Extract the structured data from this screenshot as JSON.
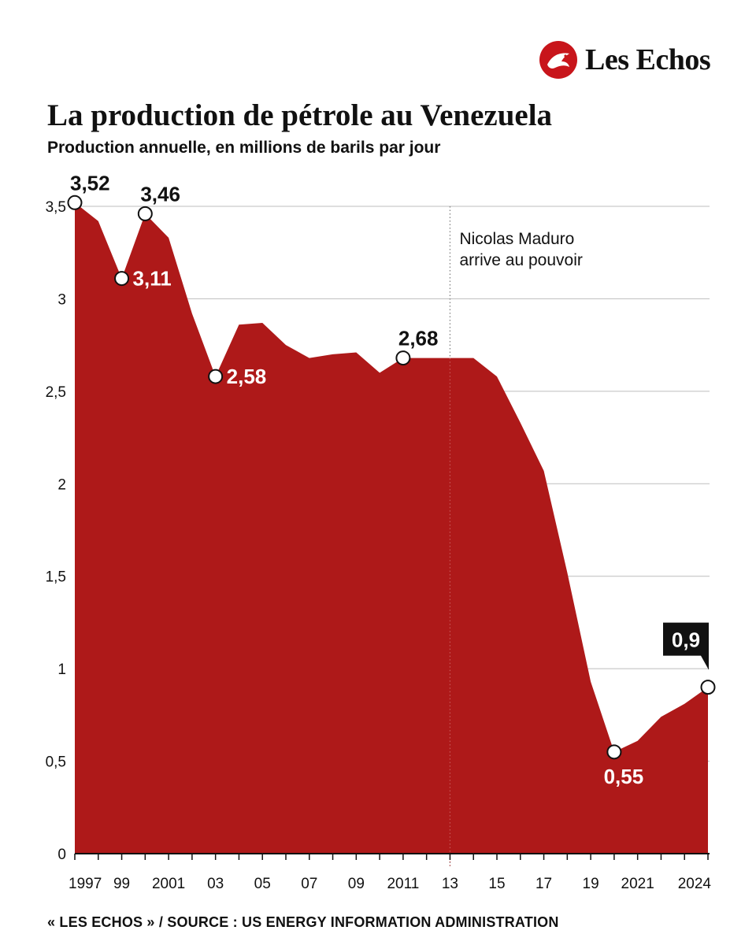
{
  "brand": {
    "name": "Les Echos"
  },
  "title": "La production de pétrole au Venezuela",
  "subtitle": "Production annuelle, en millions de barils par jour",
  "source": "« LES ECHOS » / SOURCE : US ENERGY INFORMATION ADMINISTRATION",
  "colors": {
    "area": "#ae1919",
    "brand": "#c8151b",
    "grid": "#bdbdbd",
    "text": "#111111"
  },
  "chart_data": {
    "type": "area",
    "x": [
      1997,
      1998,
      1999,
      2000,
      2001,
      2002,
      2003,
      2004,
      2005,
      2006,
      2007,
      2008,
      2009,
      2010,
      2011,
      2012,
      2013,
      2014,
      2015,
      2016,
      2017,
      2018,
      2019,
      2020,
      2021,
      2022,
      2023,
      2024
    ],
    "values": [
      3.52,
      3.42,
      3.11,
      3.46,
      3.33,
      2.92,
      2.58,
      2.86,
      2.87,
      2.75,
      2.68,
      2.7,
      2.71,
      2.6,
      2.68,
      2.68,
      2.68,
      2.68,
      2.58,
      2.33,
      2.07,
      1.52,
      0.93,
      0.55,
      0.61,
      0.74,
      0.81,
      0.9
    ],
    "ylim": [
      0,
      3.5
    ],
    "yticks": [
      0,
      0.5,
      1,
      1.5,
      2,
      2.5,
      3,
      3.5
    ],
    "ytick_labels": [
      "0",
      "0,5",
      "1",
      "1,5",
      "2",
      "2,5",
      "3",
      "3,5"
    ],
    "xticks": [
      1997,
      1999,
      2001,
      2003,
      2005,
      2007,
      2009,
      2011,
      2013,
      2015,
      2017,
      2019,
      2021,
      2024
    ],
    "xtick_labels": [
      "1997",
      "99",
      "2001",
      "03",
      "05",
      "07",
      "09",
      "2011",
      "13",
      "15",
      "17",
      "19",
      "2021",
      "2024"
    ],
    "xlabel": "",
    "ylabel": "",
    "grid": true,
    "annotations": [
      {
        "x": 1997,
        "value": 3.52,
        "label": "3,52",
        "style": "dark",
        "side": "top-right"
      },
      {
        "x": 1999,
        "value": 3.11,
        "label": "3,11",
        "style": "light",
        "side": "right"
      },
      {
        "x": 2000,
        "value": 3.46,
        "label": "3,46",
        "style": "dark",
        "side": "top-right"
      },
      {
        "x": 2003,
        "value": 2.58,
        "label": "2,58",
        "style": "light",
        "side": "right"
      },
      {
        "x": 2011,
        "value": 2.68,
        "label": "2,68",
        "style": "dark",
        "side": "top-right"
      },
      {
        "x": 2020,
        "value": 0.55,
        "label": "0,55",
        "style": "light",
        "side": "bottom"
      },
      {
        "x": 2024,
        "value": 0.9,
        "label": "0,9",
        "style": "box",
        "side": "top-left"
      }
    ],
    "event": {
      "x": 2013,
      "lines": [
        "Nicolas Maduro",
        "arrive au pouvoir"
      ]
    }
  }
}
